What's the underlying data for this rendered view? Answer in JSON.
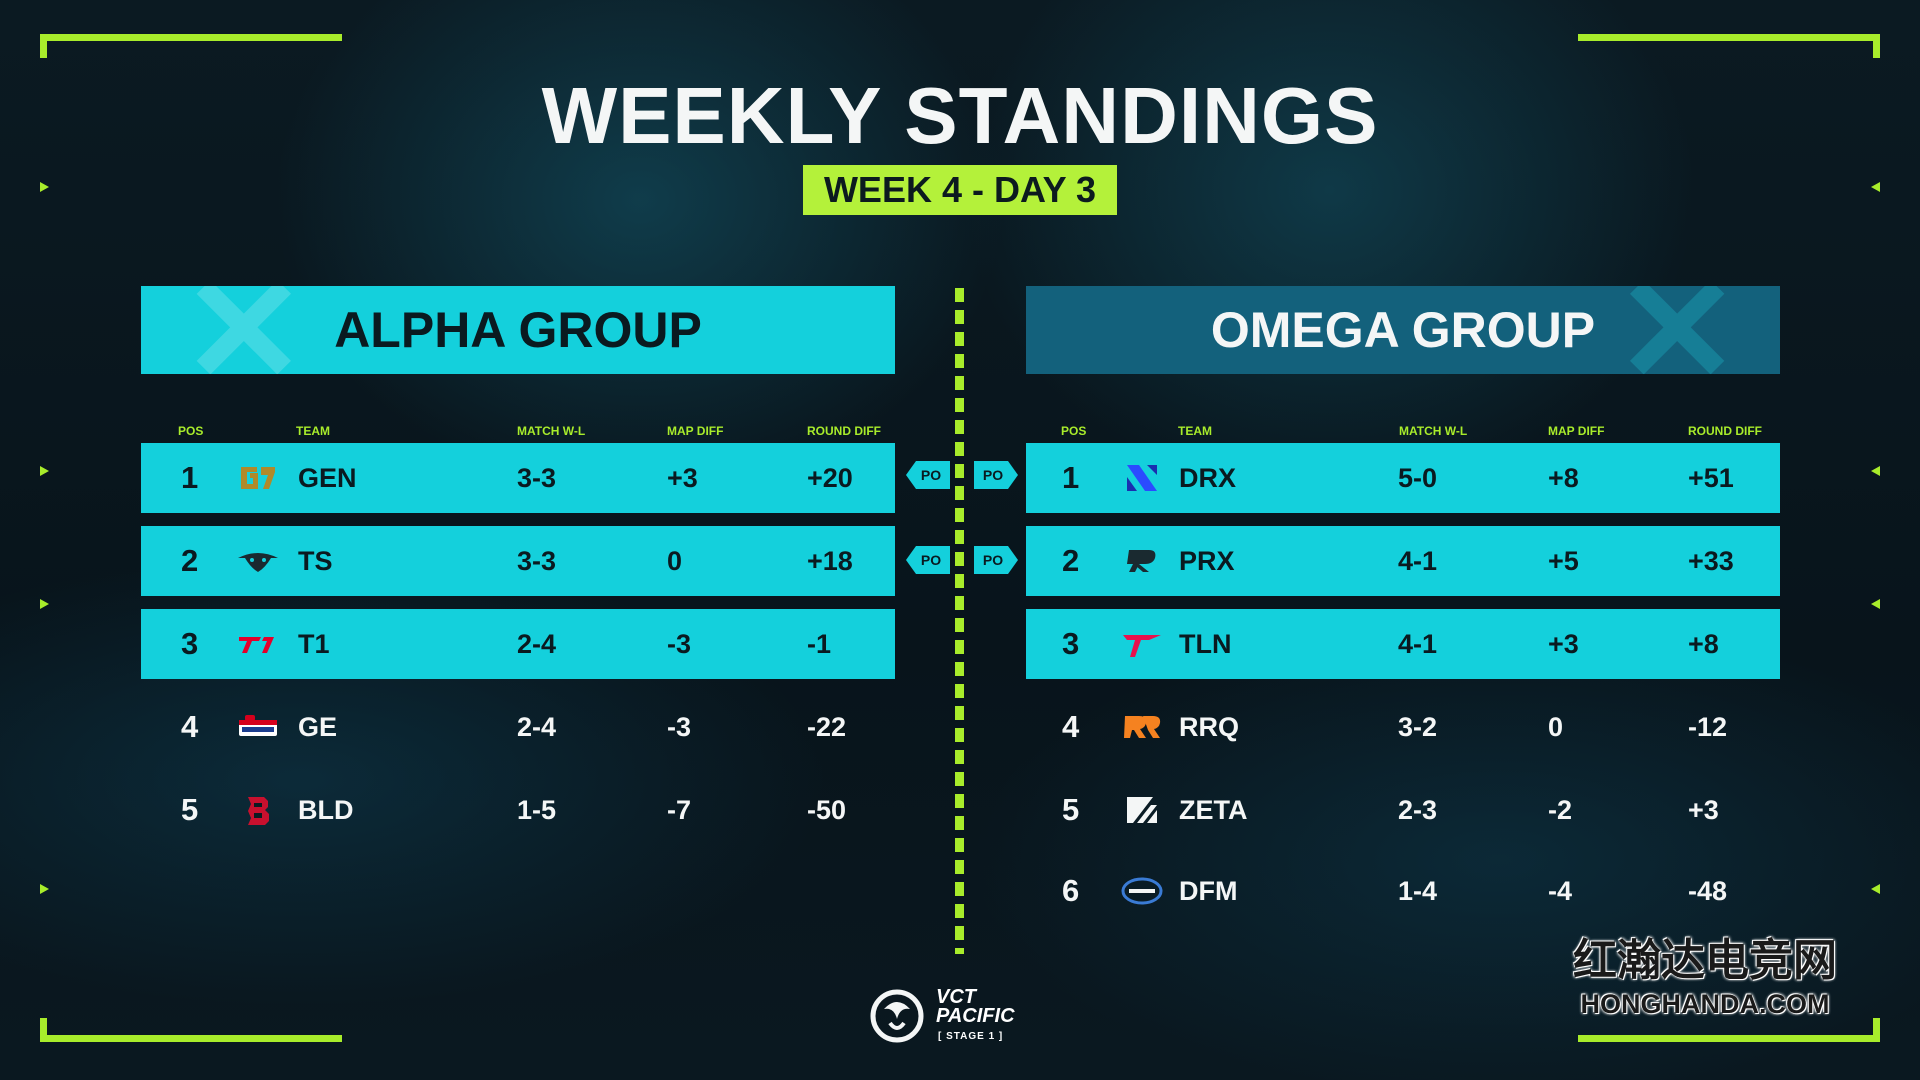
{
  "title": "WEEKLY STANDINGS",
  "subtitle": "WEEK 4 - DAY 3",
  "columns": {
    "pos": "POS",
    "team": "TEAM",
    "match": "MATCH W-L",
    "map": "MAP DIFF",
    "round": "ROUND DIFF"
  },
  "playoff_label": "PO",
  "alpha": {
    "title": "ALPHA GROUP",
    "rows": [
      {
        "pos": "1",
        "team": "GEN",
        "logo": "gen-logo-icon",
        "match": "3-3",
        "map": "+3",
        "round": "+20",
        "highlight": true
      },
      {
        "pos": "2",
        "team": "TS",
        "logo": "ts-logo-icon",
        "match": "3-3",
        "map": "0",
        "round": "+18",
        "highlight": true
      },
      {
        "pos": "3",
        "team": "T1",
        "logo": "t1-logo-icon",
        "match": "2-4",
        "map": "-3",
        "round": "-1",
        "highlight": true
      },
      {
        "pos": "4",
        "team": "GE",
        "logo": "ge-logo-icon",
        "match": "2-4",
        "map": "-3",
        "round": "-22",
        "highlight": false
      },
      {
        "pos": "5",
        "team": "BLD",
        "logo": "bld-logo-icon",
        "match": "1-5",
        "map": "-7",
        "round": "-50",
        "highlight": false
      }
    ]
  },
  "omega": {
    "title": "OMEGA GROUP",
    "rows": [
      {
        "pos": "1",
        "team": "DRX",
        "logo": "drx-logo-icon",
        "match": "5-0",
        "map": "+8",
        "round": "+51",
        "highlight": true
      },
      {
        "pos": "2",
        "team": "PRX",
        "logo": "prx-logo-icon",
        "match": "4-1",
        "map": "+5",
        "round": "+33",
        "highlight": true
      },
      {
        "pos": "3",
        "team": "TLN",
        "logo": "tln-logo-icon",
        "match": "4-1",
        "map": "+3",
        "round": "+8",
        "highlight": true
      },
      {
        "pos": "4",
        "team": "RRQ",
        "logo": "rrq-logo-icon",
        "match": "3-2",
        "map": "0",
        "round": "-12",
        "highlight": false
      },
      {
        "pos": "5",
        "team": "ZETA",
        "logo": "zeta-logo-icon",
        "match": "2-3",
        "map": "-2",
        "round": "+3",
        "highlight": false
      },
      {
        "pos": "6",
        "team": "DFM",
        "logo": "dfm-logo-icon",
        "match": "1-4",
        "map": "-4",
        "round": "-48",
        "highlight": false
      }
    ]
  },
  "brand": {
    "line1": "VCT",
    "line2": "PACIFIC",
    "line3": "[ STAGE 1 ]"
  },
  "watermark": {
    "cn": "红瀚达电竞网",
    "en": "HONGHANDA.COM"
  },
  "colors": {
    "accent_green": "#a8ec2b",
    "accent_cyan": "#14d0dc",
    "omega_header": "#13617c",
    "background": "#0b1a22"
  }
}
